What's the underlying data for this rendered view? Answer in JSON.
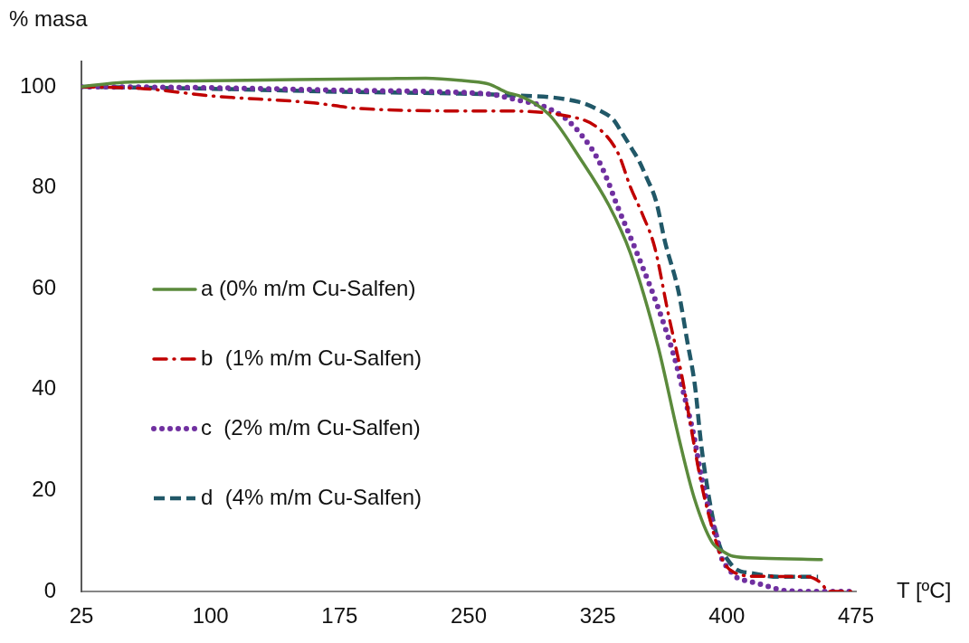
{
  "chart_data": {
    "type": "line",
    "xlabel": "T [ºC]",
    "ylabel": "% masa",
    "xlim": [
      25,
      475
    ],
    "xticks": [
      25,
      100,
      175,
      250,
      325,
      400,
      475
    ],
    "ylim": [
      0,
      105
    ],
    "yticks": [
      0,
      20,
      40,
      60,
      80,
      100
    ],
    "grid": false,
    "legend": "left",
    "marker": "none",
    "series": [
      {
        "name": "a (0% m/m Cu-Salfen)",
        "color": "#5b8a3c",
        "line_style": "solid",
        "x": [
          25,
          50,
          100,
          150,
          200,
          225,
          250,
          262,
          272,
          281,
          297,
          314,
          331.5,
          344,
          360,
          372,
          381,
          391.5,
          398,
          403.5,
          420,
          455
        ],
        "values": [
          100,
          100.9,
          101.2,
          101.4,
          101.6,
          101.7,
          101.1,
          100.5,
          98.9,
          98,
          94.4,
          86.2,
          76.5,
          67,
          48.6,
          30.6,
          18.6,
          9.7,
          7.9,
          7,
          6.6,
          6.3
        ]
      },
      {
        "name": "b  (1% m/m Cu-Salfen)",
        "color": "#c00000",
        "line_style": "dashdot",
        "x": [
          25,
          62,
          100,
          160,
          186,
          256,
          264,
          309,
          326,
          337,
          344,
          351,
          358,
          366,
          374,
          378,
          385,
          390,
          397,
          403.5,
          418,
          447,
          455,
          459,
          474
        ],
        "values": [
          100,
          99.6,
          98.2,
          96.8,
          95.7,
          95.2,
          95.2,
          94.1,
          91.6,
          86.7,
          80.1,
          74.7,
          68.3,
          55,
          42.5,
          34.8,
          21.7,
          14.5,
          6.6,
          3.9,
          3,
          2.9,
          1.6,
          0,
          0
        ]
      },
      {
        "name": "c  (2% m/m Cu-Salfen)",
        "color": "#7030a0",
        "line_style": "dotted",
        "x": [
          25,
          100,
          175,
          250,
          265,
          274,
          295,
          307,
          317,
          325,
          331,
          336,
          341.5,
          347,
          360,
          369,
          376,
          381,
          385,
          390,
          394,
          397,
          401,
          406,
          413,
          420,
          427,
          433,
          450,
          475
        ],
        "values": [
          100,
          99.8,
          99.3,
          98.8,
          98.4,
          97.7,
          95.9,
          93.5,
          89.8,
          85.7,
          81.2,
          76.7,
          72.2,
          67.7,
          56.3,
          47,
          37.8,
          30.6,
          23.1,
          15.6,
          10.9,
          6.6,
          4.5,
          2.7,
          2,
          1.4,
          0.7,
          0.2,
          0,
          0
        ]
      },
      {
        "name": "d  (4% m/m Cu-Salfen)",
        "color": "#215868",
        "line_style": "dashed",
        "x": [
          25,
          100,
          175,
          250,
          267,
          314,
          326,
          334,
          339,
          345,
          349,
          353,
          359,
          364,
          372,
          377,
          381.5,
          385,
          389,
          393,
          396.5,
          399,
          405,
          415,
          430,
          453
        ],
        "values": [
          100,
          99.6,
          99,
          98.6,
          98.4,
          97,
          95.3,
          93.5,
          90.9,
          87.6,
          85.3,
          82.3,
          77.2,
          69.4,
          59.3,
          49.6,
          40.7,
          29.4,
          19.9,
          12.7,
          8.4,
          7,
          4.5,
          3.6,
          2.9,
          2.9
        ]
      }
    ]
  }
}
